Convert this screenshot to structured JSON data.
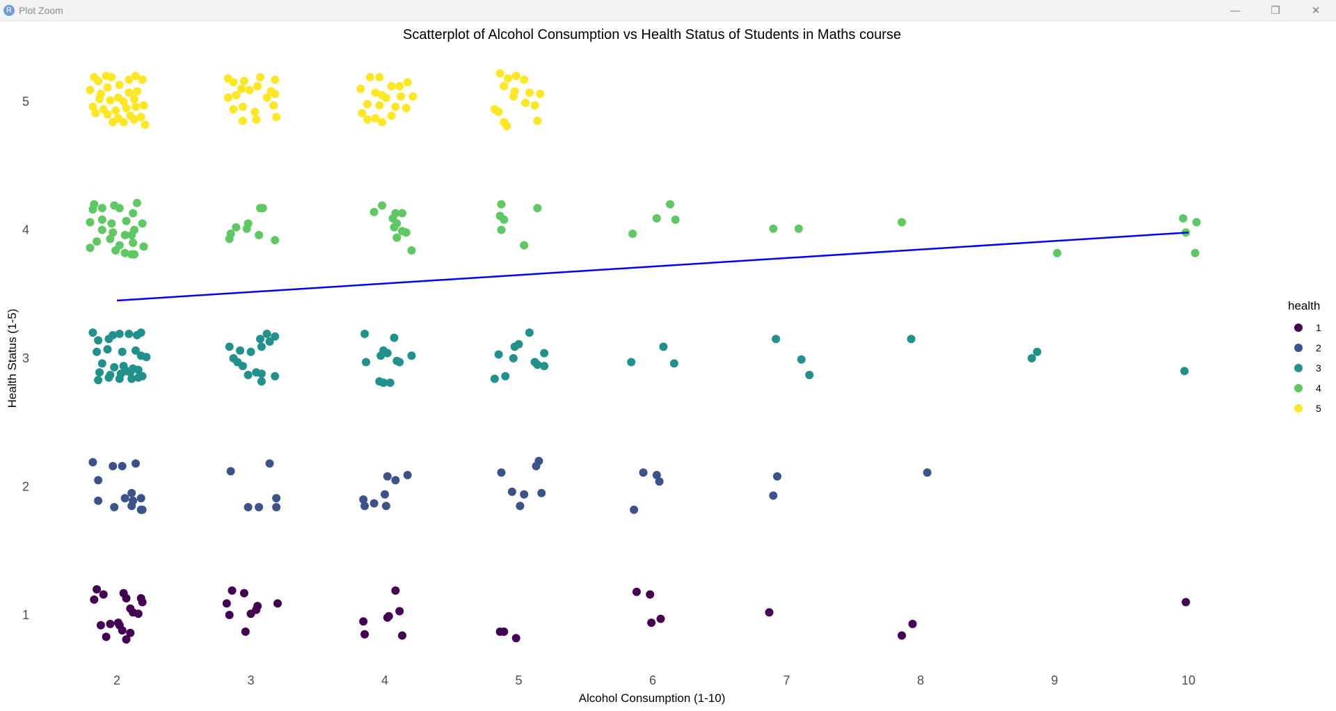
{
  "window": {
    "app_icon_glyph": "R",
    "title": "Plot Zoom",
    "minimize_glyph": "—",
    "maximize_glyph": "❐",
    "close_glyph": "✕"
  },
  "chart_data": {
    "type": "scatter",
    "title": "Scatterplot of Alcohol Consumption vs Health Status of Students in Maths course",
    "xlabel": "Alcohol Consumption (1-10)",
    "ylabel": "Health Status (1-5)",
    "x_ticks": [
      2,
      3,
      4,
      5,
      6,
      7,
      8,
      9,
      10
    ],
    "y_ticks": [
      1,
      2,
      3,
      4,
      5
    ],
    "xlim": [
      1.75,
      10.25
    ],
    "ylim": [
      0.5,
      5.5
    ],
    "grid": false,
    "jitter": true,
    "legend": {
      "title": "health",
      "position": "right",
      "entries": [
        {
          "label": "1",
          "color": "#440154"
        },
        {
          "label": "2",
          "color": "#3b528b"
        },
        {
          "label": "3",
          "color": "#21918c"
        },
        {
          "label": "4",
          "color": "#5ec962"
        },
        {
          "label": "5",
          "color": "#fde725"
        }
      ]
    },
    "trend_line": {
      "color": "#0000ff",
      "x": [
        2,
        10
      ],
      "y": [
        3.45,
        3.98
      ]
    },
    "points": [
      [
        1.85,
        1.2
      ],
      [
        1.9,
        1.16
      ],
      [
        1.83,
        1.12
      ],
      [
        2.05,
        1.17
      ],
      [
        2.07,
        1.13
      ],
      [
        2.19,
        1.1
      ],
      [
        2.18,
        1.13
      ],
      [
        2.1,
        1.05
      ],
      [
        2.12,
        1.02
      ],
      [
        2.16,
        1.01
      ],
      [
        1.88,
        0.92
      ],
      [
        1.95,
        0.93
      ],
      [
        2.01,
        0.94
      ],
      [
        2.04,
        0.88
      ],
      [
        2.02,
        0.92
      ],
      [
        2.1,
        0.86
      ],
      [
        1.92,
        0.83
      ],
      [
        2.07,
        0.81
      ],
      [
        2.86,
        1.19
      ],
      [
        2.95,
        1.17
      ],
      [
        2.82,
        1.09
      ],
      [
        3.05,
        1.07
      ],
      [
        3.04,
        1.04
      ],
      [
        3.2,
        1.09
      ],
      [
        2.84,
        1.0
      ],
      [
        3.0,
        1.01
      ],
      [
        2.96,
        0.87
      ],
      [
        4.08,
        1.19
      ],
      [
        3.84,
        0.95
      ],
      [
        4.02,
        0.98
      ],
      [
        4.03,
        0.99
      ],
      [
        4.11,
        1.03
      ],
      [
        3.85,
        0.85
      ],
      [
        4.13,
        0.84
      ],
      [
        4.86,
        0.87
      ],
      [
        4.89,
        0.87
      ],
      [
        4.98,
        0.82
      ],
      [
        5.88,
        1.18
      ],
      [
        5.98,
        1.16
      ],
      [
        6.06,
        0.97
      ],
      [
        5.99,
        0.94
      ],
      [
        6.87,
        1.02
      ],
      [
        7.86,
        0.84
      ],
      [
        7.94,
        0.93
      ],
      [
        9.98,
        1.1
      ],
      [
        1.82,
        2.19
      ],
      [
        1.86,
        2.05
      ],
      [
        1.86,
        1.89
      ],
      [
        1.97,
        2.16
      ],
      [
        2.04,
        2.16
      ],
      [
        2.14,
        2.18
      ],
      [
        1.98,
        1.84
      ],
      [
        2.06,
        1.91
      ],
      [
        2.11,
        1.95
      ],
      [
        2.12,
        1.89
      ],
      [
        2.18,
        1.91
      ],
      [
        2.11,
        1.85
      ],
      [
        2.19,
        1.82
      ],
      [
        2.18,
        1.82
      ],
      [
        2.85,
        2.12
      ],
      [
        3.14,
        2.18
      ],
      [
        2.98,
        1.84
      ],
      [
        3.06,
        1.84
      ],
      [
        3.19,
        1.91
      ],
      [
        3.19,
        1.84
      ],
      [
        3.84,
        1.9
      ],
      [
        3.85,
        1.85
      ],
      [
        3.92,
        1.87
      ],
      [
        4.0,
        1.94
      ],
      [
        4.01,
        1.85
      ],
      [
        4.02,
        2.08
      ],
      [
        4.08,
        2.05
      ],
      [
        4.17,
        2.09
      ],
      [
        4.87,
        2.11
      ],
      [
        4.95,
        1.96
      ],
      [
        5.01,
        1.85
      ],
      [
        5.04,
        1.94
      ],
      [
        5.13,
        2.16
      ],
      [
        5.15,
        2.2
      ],
      [
        5.17,
        1.95
      ],
      [
        5.93,
        2.11
      ],
      [
        6.03,
        2.09
      ],
      [
        6.05,
        2.04
      ],
      [
        5.86,
        1.82
      ],
      [
        6.93,
        2.08
      ],
      [
        6.9,
        1.93
      ],
      [
        8.05,
        2.11
      ],
      [
        1.82,
        3.2
      ],
      [
        1.86,
        3.14
      ],
      [
        1.97,
        3.18
      ],
      [
        2.02,
        3.19
      ],
      [
        2.09,
        3.19
      ],
      [
        2.15,
        3.18
      ],
      [
        2.18,
        3.2
      ],
      [
        1.94,
        3.15
      ],
      [
        1.85,
        3.05
      ],
      [
        1.93,
        3.07
      ],
      [
        2.04,
        3.05
      ],
      [
        2.14,
        3.06
      ],
      [
        2.18,
        3.02
      ],
      [
        2.22,
        3.01
      ],
      [
        1.89,
        2.96
      ],
      [
        1.98,
        2.93
      ],
      [
        2.05,
        2.94
      ],
      [
        2.12,
        2.92
      ],
      [
        2.16,
        2.91
      ],
      [
        1.87,
        2.89
      ],
      [
        1.95,
        2.87
      ],
      [
        2.03,
        2.88
      ],
      [
        2.1,
        2.89
      ],
      [
        2.19,
        2.86
      ],
      [
        1.86,
        2.83
      ],
      [
        1.94,
        2.85
      ],
      [
        2.02,
        2.84
      ],
      [
        2.11,
        2.84
      ],
      [
        2.16,
        2.85
      ],
      [
        2.07,
        2.9
      ],
      [
        2.84,
        3.09
      ],
      [
        2.87,
        3.0
      ],
      [
        2.92,
        3.06
      ],
      [
        2.94,
        2.94
      ],
      [
        3.0,
        3.05
      ],
      [
        3.08,
        3.09
      ],
      [
        3.07,
        3.15
      ],
      [
        3.12,
        3.19
      ],
      [
        3.18,
        3.17
      ],
      [
        3.14,
        3.13
      ],
      [
        2.9,
        2.97
      ],
      [
        2.98,
        2.87
      ],
      [
        3.04,
        2.89
      ],
      [
        3.08,
        2.88
      ],
      [
        3.08,
        2.82
      ],
      [
        3.18,
        2.86
      ],
      [
        3.85,
        3.19
      ],
      [
        3.86,
        2.97
      ],
      [
        3.97,
        3.02
      ],
      [
        3.99,
        3.06
      ],
      [
        4.02,
        3.04
      ],
      [
        4.07,
        3.16
      ],
      [
        4.09,
        2.98
      ],
      [
        4.11,
        2.97
      ],
      [
        4.2,
        3.02
      ],
      [
        3.96,
        2.82
      ],
      [
        3.99,
        2.81
      ],
      [
        4.04,
        2.81
      ],
      [
        4.85,
        3.03
      ],
      [
        4.97,
        3.09
      ],
      [
        5.0,
        3.11
      ],
      [
        5.08,
        3.2
      ],
      [
        4.96,
        3.0
      ],
      [
        5.12,
        2.97
      ],
      [
        5.14,
        2.95
      ],
      [
        5.19,
        3.04
      ],
      [
        5.19,
        2.94
      ],
      [
        4.82,
        2.84
      ],
      [
        4.9,
        2.86
      ],
      [
        5.84,
        2.97
      ],
      [
        6.08,
        3.09
      ],
      [
        6.16,
        2.96
      ],
      [
        6.92,
        3.15
      ],
      [
        7.11,
        2.99
      ],
      [
        7.17,
        2.87
      ],
      [
        7.93,
        3.15
      ],
      [
        8.83,
        3.0
      ],
      [
        8.87,
        3.05
      ],
      [
        9.97,
        2.9
      ],
      [
        1.83,
        4.2
      ],
      [
        1.82,
        4.16
      ],
      [
        1.89,
        4.17
      ],
      [
        1.98,
        4.19
      ],
      [
        2.02,
        4.17
      ],
      [
        2.12,
        4.13
      ],
      [
        2.15,
        4.21
      ],
      [
        1.8,
        4.06
      ],
      [
        1.89,
        4.08
      ],
      [
        1.96,
        4.05
      ],
      [
        2.07,
        4.07
      ],
      [
        2.19,
        4.05
      ],
      [
        1.89,
        4.0
      ],
      [
        1.97,
        3.98
      ],
      [
        2.06,
        3.96
      ],
      [
        2.13,
        4.0
      ],
      [
        2.11,
        3.96
      ],
      [
        1.85,
        3.91
      ],
      [
        1.95,
        3.93
      ],
      [
        2.02,
        3.88
      ],
      [
        2.12,
        3.9
      ],
      [
        1.8,
        3.86
      ],
      [
        1.99,
        3.84
      ],
      [
        2.06,
        3.82
      ],
      [
        2.13,
        3.81
      ],
      [
        2.2,
        3.87
      ],
      [
        2.11,
        3.81
      ],
      [
        3.07,
        4.17
      ],
      [
        3.09,
        4.17
      ],
      [
        2.98,
        4.05
      ],
      [
        2.89,
        4.02
      ],
      [
        2.85,
        3.97
      ],
      [
        2.84,
        3.93
      ],
      [
        2.97,
        4.01
      ],
      [
        3.06,
        3.96
      ],
      [
        3.18,
        3.92
      ],
      [
        3.92,
        4.14
      ],
      [
        3.98,
        4.19
      ],
      [
        4.08,
        4.13
      ],
      [
        4.13,
        4.13
      ],
      [
        4.06,
        4.09
      ],
      [
        4.09,
        4.05
      ],
      [
        4.07,
        4.02
      ],
      [
        4.13,
        3.99
      ],
      [
        4.16,
        3.98
      ],
      [
        4.09,
        3.94
      ],
      [
        4.2,
        3.84
      ],
      [
        4.87,
        4.2
      ],
      [
        5.14,
        4.17
      ],
      [
        4.86,
        4.11
      ],
      [
        4.89,
        4.08
      ],
      [
        4.87,
        4.0
      ],
      [
        5.04,
        3.88
      ],
      [
        5.85,
        3.97
      ],
      [
        6.03,
        4.09
      ],
      [
        6.13,
        4.2
      ],
      [
        6.17,
        4.08
      ],
      [
        6.9,
        4.01
      ],
      [
        7.09,
        4.01
      ],
      [
        7.86,
        4.06
      ],
      [
        9.02,
        3.82
      ],
      [
        9.96,
        4.09
      ],
      [
        9.98,
        3.98
      ],
      [
        10.05,
        3.82
      ],
      [
        10.06,
        4.06
      ],
      [
        1.83,
        5.19
      ],
      [
        1.86,
        5.16
      ],
      [
        1.92,
        5.2
      ],
      [
        1.96,
        5.19
      ],
      [
        2.02,
        5.13
      ],
      [
        2.09,
        5.17
      ],
      [
        2.14,
        5.2
      ],
      [
        2.19,
        5.17
      ],
      [
        1.8,
        5.09
      ],
      [
        1.88,
        5.06
      ],
      [
        2.01,
        5.03
      ],
      [
        2.09,
        5.07
      ],
      [
        2.15,
        5.08
      ],
      [
        1.93,
        5.11
      ],
      [
        1.87,
        5.02
      ],
      [
        1.95,
        5.01
      ],
      [
        2.05,
        5.0
      ],
      [
        2.13,
        5.02
      ],
      [
        1.82,
        4.96
      ],
      [
        1.9,
        4.94
      ],
      [
        1.99,
        4.93
      ],
      [
        2.07,
        4.95
      ],
      [
        2.14,
        4.96
      ],
      [
        2.2,
        4.97
      ],
      [
        1.84,
        4.91
      ],
      [
        1.93,
        4.9
      ],
      [
        2.01,
        4.87
      ],
      [
        2.1,
        4.89
      ],
      [
        2.18,
        4.88
      ],
      [
        1.97,
        4.84
      ],
      [
        2.05,
        4.84
      ],
      [
        2.13,
        4.86
      ],
      [
        2.21,
        4.82
      ],
      [
        2.83,
        5.18
      ],
      [
        2.87,
        5.15
      ],
      [
        2.95,
        5.16
      ],
      [
        3.07,
        5.19
      ],
      [
        3.18,
        5.17
      ],
      [
        3.05,
        5.12
      ],
      [
        3.15,
        5.08
      ],
      [
        2.93,
        5.1
      ],
      [
        2.99,
        5.09
      ],
      [
        2.83,
        5.03
      ],
      [
        2.89,
        5.05
      ],
      [
        3.12,
        5.03
      ],
      [
        3.18,
        5.06
      ],
      [
        2.87,
        4.94
      ],
      [
        2.94,
        4.96
      ],
      [
        3.03,
        4.92
      ],
      [
        3.17,
        4.97
      ],
      [
        3.19,
        4.88
      ],
      [
        2.94,
        4.85
      ],
      [
        3.04,
        4.86
      ],
      [
        3.89,
        5.19
      ],
      [
        3.96,
        5.19
      ],
      [
        4.05,
        5.12
      ],
      [
        4.17,
        5.15
      ],
      [
        4.11,
        5.12
      ],
      [
        3.82,
        5.1
      ],
      [
        3.93,
        5.07
      ],
      [
        3.98,
        5.05
      ],
      [
        4.01,
        5.03
      ],
      [
        4.12,
        5.04
      ],
      [
        4.21,
        5.04
      ],
      [
        3.87,
        4.98
      ],
      [
        3.96,
        4.97
      ],
      [
        4.08,
        4.96
      ],
      [
        4.16,
        4.95
      ],
      [
        3.83,
        4.91
      ],
      [
        3.93,
        4.87
      ],
      [
        3.98,
        4.84
      ],
      [
        4.05,
        4.89
      ],
      [
        3.87,
        4.86
      ],
      [
        4.86,
        5.22
      ],
      [
        4.92,
        5.18
      ],
      [
        4.98,
        5.2
      ],
      [
        5.04,
        5.17
      ],
      [
        4.89,
        5.12
      ],
      [
        4.97,
        5.08
      ],
      [
        5.08,
        5.07
      ],
      [
        5.16,
        5.06
      ],
      [
        4.96,
        5.04
      ],
      [
        5.05,
        4.99
      ],
      [
        5.12,
        4.97
      ],
      [
        4.82,
        4.94
      ],
      [
        4.85,
        4.92
      ],
      [
        5.14,
        4.85
      ],
      [
        4.89,
        4.84
      ],
      [
        4.91,
        4.81
      ]
    ]
  }
}
